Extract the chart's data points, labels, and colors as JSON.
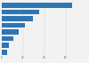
{
  "values": [
    66.4,
    35.0,
    29.0,
    22.0,
    16.0,
    11.0,
    6.5,
    5.0
  ],
  "bar_color": "#2e75b6",
  "background_color": "#f2f2f2",
  "plot_background": "#f2f2f2",
  "xlim": [
    0,
    72
  ],
  "figsize": [
    1.0,
    0.71
  ],
  "dpi": 100,
  "bar_height": 0.75
}
